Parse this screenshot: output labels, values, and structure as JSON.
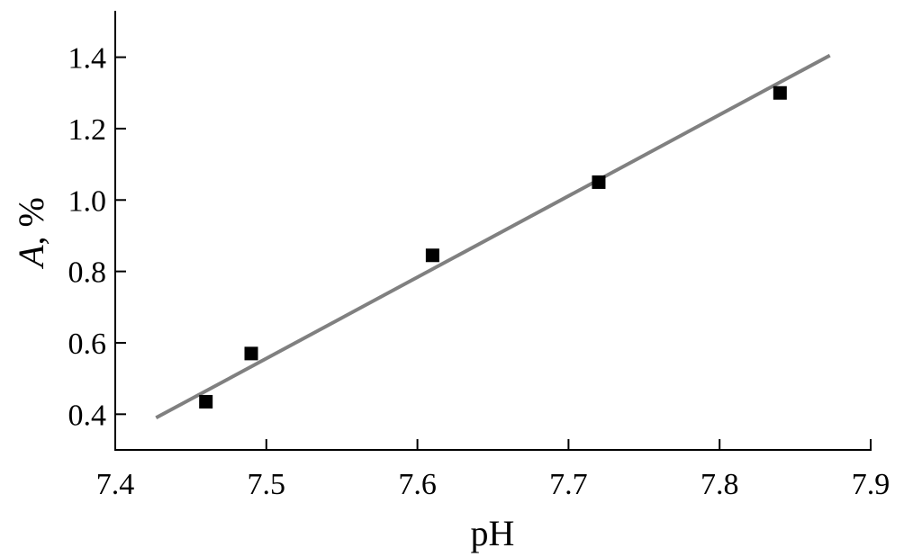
{
  "chart_data": {
    "type": "scatter",
    "xlabel": "pH",
    "ylabel_var": "A",
    "ylabel_unit": ", %",
    "xlim": [
      7.4,
      7.9
    ],
    "ylim": [
      0.3,
      1.53
    ],
    "xticks": [
      "7.4",
      "7.5",
      "7.6",
      "7.7",
      "7.8",
      "7.9"
    ],
    "yticks": [
      "0.4",
      "0.6",
      "0.8",
      "1.0",
      "1.2",
      "1.4"
    ],
    "grid": false,
    "series": [
      {
        "points": [
          {
            "x": 7.46,
            "y": 0.435
          },
          {
            "x": 7.49,
            "y": 0.57
          },
          {
            "x": 7.61,
            "y": 0.845
          },
          {
            "x": 7.72,
            "y": 1.05
          },
          {
            "x": 7.84,
            "y": 1.3
          }
        ],
        "marker": "square",
        "color": "#000000"
      }
    ],
    "fit_line": {
      "x": [
        7.427,
        7.873
      ],
      "y": [
        0.39,
        1.405
      ],
      "color": "#808080"
    }
  }
}
